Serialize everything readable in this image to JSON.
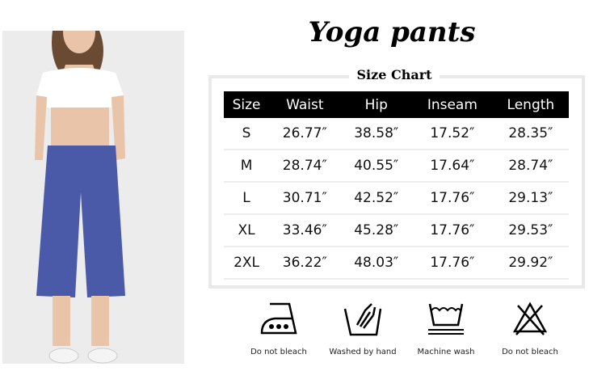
{
  "title": "Yoga pants",
  "size_chart": {
    "title": "Size Chart",
    "columns": [
      "Size",
      "Waist",
      "Hip",
      "Inseam",
      "Length"
    ],
    "rows": [
      [
        "S",
        "26.77″",
        "38.58″",
        "17.52″",
        "28.35″"
      ],
      [
        "M",
        "28.74″",
        "40.55″",
        "17.64″",
        "28.74″"
      ],
      [
        "L",
        "30.71″",
        "42.52″",
        "17.76″",
        "29.13″"
      ],
      [
        "XL",
        "33.46″",
        "45.28″",
        "17.76″",
        "29.53″"
      ],
      [
        "2XL",
        "36.22″",
        "48.03″",
        "17.76″",
        "29.92″"
      ]
    ]
  },
  "care": [
    {
      "icon": "iron-icon",
      "label": "Do not bleach"
    },
    {
      "icon": "hand-wash-icon",
      "label": "Washed by hand"
    },
    {
      "icon": "machine-wash-icon",
      "label": "Machine wash"
    },
    {
      "icon": "no-bleach-icon",
      "label": "Do not bleach"
    }
  ],
  "colors": {
    "pants": "#4a5aa8",
    "header": "#000000",
    "panel": "#ececec"
  }
}
